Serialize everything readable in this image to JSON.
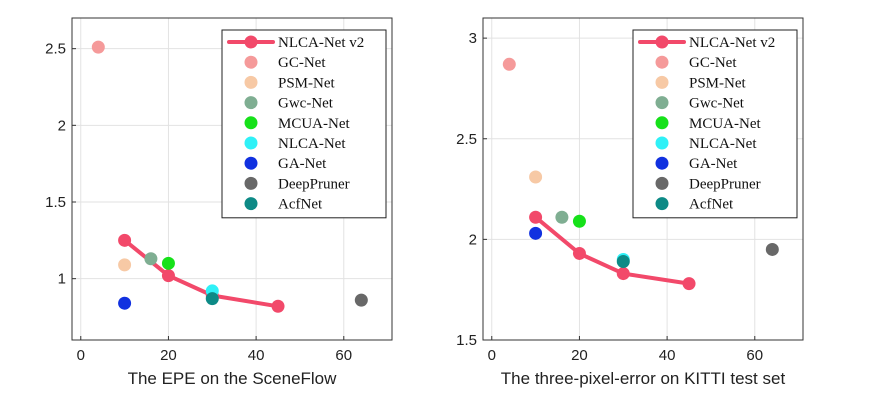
{
  "chart_data": [
    {
      "type": "scatter",
      "xlabel": "The EPE on the SceneFlow",
      "ylabel": "",
      "xlim": [
        -2,
        71
      ],
      "ylim": [
        0.6,
        2.7
      ],
      "xticks": [
        0,
        20,
        40,
        60
      ],
      "yticks": [
        1,
        1.5,
        2,
        2.5
      ],
      "ytick_labels": [
        "1",
        "1.5",
        "2",
        "2.5"
      ],
      "grid": true,
      "legend_position": "top-right",
      "series": [
        {
          "name": "NLCA-Net v2",
          "color": "#f2496a",
          "line": true,
          "points": [
            [
              10,
              1.25
            ],
            [
              20,
              1.02
            ],
            [
              30,
              0.89
            ],
            [
              45,
              0.82
            ]
          ]
        },
        {
          "name": "GC-Net",
          "color": "#f59a9a",
          "points": [
            [
              4,
              2.51
            ]
          ]
        },
        {
          "name": "PSM-Net",
          "color": "#f7c9a5",
          "points": [
            [
              10,
              1.09
            ]
          ]
        },
        {
          "name": "Gwc-Net",
          "color": "#7fae92",
          "points": [
            [
              16,
              1.13
            ]
          ]
        },
        {
          "name": "MCUA-Net",
          "color": "#16e11a",
          "points": [
            [
              20,
              1.1
            ]
          ]
        },
        {
          "name": "NLCA-Net",
          "color": "#2ff1f7",
          "points": [
            [
              30,
              0.92
            ]
          ]
        },
        {
          "name": "GA-Net",
          "color": "#1131e0",
          "points": [
            [
              10,
              0.84
            ]
          ]
        },
        {
          "name": "DeepPruner",
          "color": "#686868",
          "points": [
            [
              64,
              0.86
            ]
          ]
        },
        {
          "name": "AcfNet",
          "color": "#0d8a86",
          "points": [
            [
              30,
              0.87
            ]
          ]
        }
      ]
    },
    {
      "type": "scatter",
      "xlabel": "The three-pixel-error on KITTI test set",
      "ylabel": "",
      "xlim": [
        -2,
        71
      ],
      "ylim": [
        1.5,
        3.1
      ],
      "xticks": [
        0,
        20,
        40,
        60
      ],
      "yticks": [
        1.5,
        2,
        2.5,
        3
      ],
      "ytick_labels": [
        "1.5",
        "2",
        "2.5",
        "3"
      ],
      "grid": true,
      "legend_position": "top-right",
      "series": [
        {
          "name": "NLCA-Net v2",
          "color": "#f2496a",
          "line": true,
          "points": [
            [
              10,
              2.11
            ],
            [
              20,
              1.93
            ],
            [
              30,
              1.83
            ],
            [
              45,
              1.78
            ]
          ]
        },
        {
          "name": "GC-Net",
          "color": "#f59a9a",
          "points": [
            [
              4,
              2.87
            ]
          ]
        },
        {
          "name": "PSM-Net",
          "color": "#f7c9a5",
          "points": [
            [
              10,
              2.31
            ]
          ]
        },
        {
          "name": "Gwc-Net",
          "color": "#7fae92",
          "points": [
            [
              16,
              2.11
            ]
          ]
        },
        {
          "name": "MCUA-Net",
          "color": "#16e11a",
          "points": [
            [
              20,
              2.09
            ]
          ]
        },
        {
          "name": "NLCA-Net",
          "color": "#2ff1f7",
          "points": [
            [
              30,
              1.9
            ]
          ]
        },
        {
          "name": "GA-Net",
          "color": "#1131e0",
          "points": [
            [
              10,
              2.03
            ]
          ]
        },
        {
          "name": "DeepPruner",
          "color": "#686868",
          "points": [
            [
              64,
              1.95
            ]
          ]
        },
        {
          "name": "AcfNet",
          "color": "#0d8a86",
          "points": [
            [
              30,
              1.89
            ]
          ]
        }
      ]
    }
  ]
}
